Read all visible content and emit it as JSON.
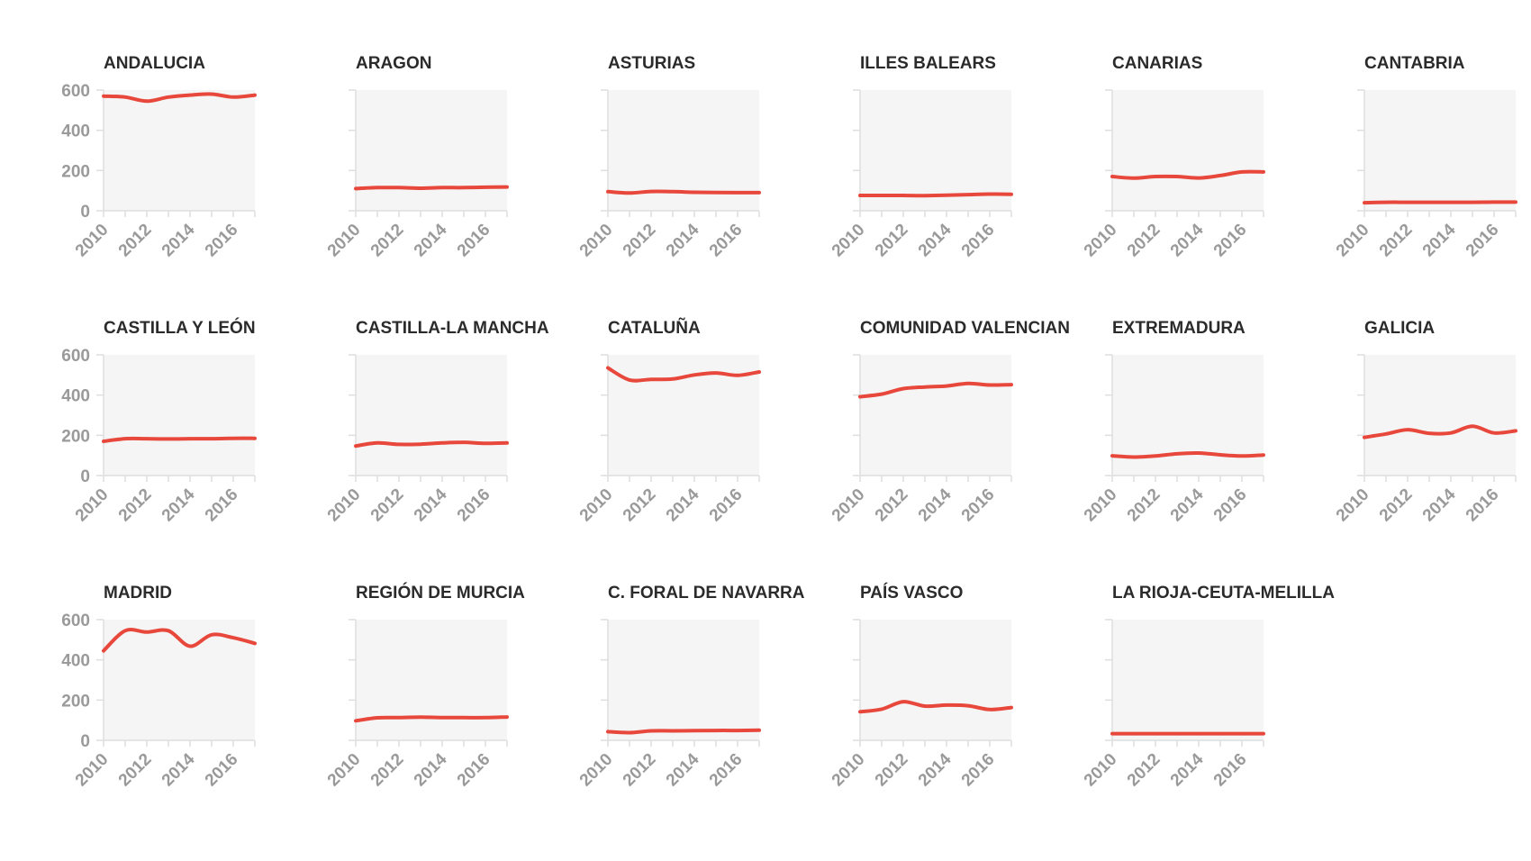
{
  "chart_data": {
    "type": "line",
    "layout": "small-multiples",
    "x_ticks": [
      "2010",
      "2012",
      "2014",
      "2016"
    ],
    "y_ticks": [
      "0",
      "200",
      "400",
      "600"
    ],
    "xlim": [
      2010,
      2017
    ],
    "ylim": [
      0,
      600
    ],
    "grid": false,
    "line_color": "#e8483c",
    "panels": [
      {
        "title": "ANDALUCIA",
        "x": [
          2010,
          2011,
          2012,
          2013,
          2014,
          2015,
          2016,
          2017
        ],
        "values": [
          570,
          565,
          545,
          565,
          575,
          580,
          565,
          575
        ]
      },
      {
        "title": "ARAGON",
        "x": [
          2010,
          2011,
          2012,
          2013,
          2014,
          2015,
          2016,
          2017
        ],
        "values": [
          110,
          115,
          115,
          112,
          115,
          115,
          117,
          118
        ]
      },
      {
        "title": "ASTURIAS",
        "x": [
          2010,
          2011,
          2012,
          2013,
          2014,
          2015,
          2016,
          2017
        ],
        "values": [
          95,
          88,
          96,
          95,
          92,
          91,
          90,
          90
        ]
      },
      {
        "title": "ILLES BALEARS",
        "x": [
          2010,
          2011,
          2012,
          2013,
          2014,
          2015,
          2016,
          2017
        ],
        "values": [
          76,
          76,
          76,
          75,
          77,
          80,
          83,
          82
        ]
      },
      {
        "title": "CANARIAS",
        "x": [
          2010,
          2011,
          2012,
          2013,
          2014,
          2015,
          2016,
          2017
        ],
        "values": [
          170,
          162,
          170,
          170,
          163,
          175,
          193,
          193
        ]
      },
      {
        "title": "CANTABRIA",
        "x": [
          2010,
          2011,
          2012,
          2013,
          2014,
          2015,
          2016,
          2017
        ],
        "values": [
          40,
          42,
          42,
          42,
          42,
          42,
          43,
          43
        ]
      },
      {
        "title": "CASTILLA Y LEÓN",
        "x": [
          2010,
          2011,
          2012,
          2013,
          2014,
          2015,
          2016,
          2017
        ],
        "values": [
          170,
          183,
          183,
          182,
          183,
          183,
          185,
          185
        ]
      },
      {
        "title": "CASTILLA-LA MANCHA",
        "x": [
          2010,
          2011,
          2012,
          2013,
          2014,
          2015,
          2016,
          2017
        ],
        "values": [
          147,
          162,
          155,
          156,
          162,
          165,
          160,
          162
        ]
      },
      {
        "title": "CATALUÑA",
        "x": [
          2010,
          2011,
          2012,
          2013,
          2014,
          2015,
          2016,
          2017
        ],
        "values": [
          535,
          475,
          478,
          480,
          500,
          510,
          498,
          515
        ]
      },
      {
        "title": "COMUNIDAD VALENCIAN",
        "x": [
          2010,
          2011,
          2012,
          2013,
          2014,
          2015,
          2016,
          2017
        ],
        "values": [
          392,
          405,
          432,
          440,
          445,
          458,
          450,
          452
        ]
      },
      {
        "title": "EXTREMADURA",
        "x": [
          2010,
          2011,
          2012,
          2013,
          2014,
          2015,
          2016,
          2017
        ],
        "values": [
          98,
          92,
          97,
          108,
          112,
          103,
          97,
          102
        ]
      },
      {
        "title": "GALICIA",
        "x": [
          2010,
          2011,
          2012,
          2013,
          2014,
          2015,
          2016,
          2017
        ],
        "values": [
          190,
          207,
          228,
          210,
          212,
          245,
          212,
          222
        ]
      },
      {
        "title": "MADRID",
        "x": [
          2010,
          2011,
          2012,
          2013,
          2014,
          2015,
          2016,
          2017
        ],
        "values": [
          445,
          545,
          538,
          545,
          468,
          525,
          510,
          482
        ]
      },
      {
        "title": "REGIÓN DE MURCIA",
        "x": [
          2010,
          2011,
          2012,
          2013,
          2014,
          2015,
          2016,
          2017
        ],
        "values": [
          97,
          112,
          113,
          115,
          113,
          113,
          113,
          116
        ]
      },
      {
        "title": "C. FORAL DE NAVARRA",
        "x": [
          2010,
          2011,
          2012,
          2013,
          2014,
          2015,
          2016,
          2017
        ],
        "values": [
          43,
          38,
          47,
          47,
          48,
          49,
          49,
          50
        ]
      },
      {
        "title": "PAÍS VASCO",
        "x": [
          2010,
          2011,
          2012,
          2013,
          2014,
          2015,
          2016,
          2017
        ],
        "values": [
          142,
          155,
          192,
          170,
          175,
          172,
          153,
          163
        ]
      },
      {
        "title": "LA RIOJA-CEUTA-MELILLA",
        "x": [
          2010,
          2011,
          2012,
          2013,
          2014,
          2015,
          2016,
          2017
        ],
        "values": [
          33,
          33,
          33,
          33,
          33,
          33,
          33,
          33
        ]
      }
    ]
  }
}
